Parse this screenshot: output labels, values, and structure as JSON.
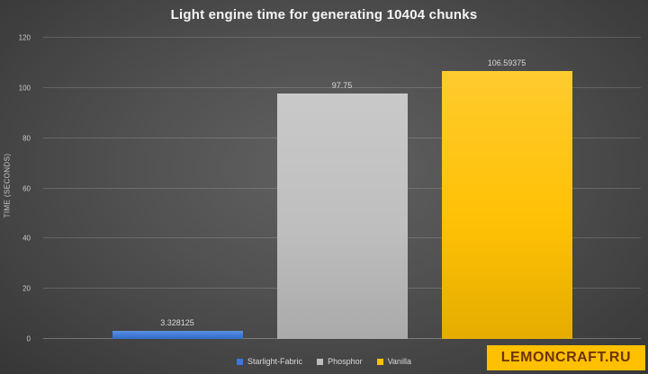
{
  "chart_data": {
    "type": "bar",
    "title": "Light engine time for generating 10404 chunks",
    "xlabel": "",
    "ylabel": "TIME (SECONDS)",
    "ylim": [
      0,
      120
    ],
    "yticks": [
      0,
      20,
      40,
      60,
      80,
      100,
      120
    ],
    "grid": true,
    "legend_position": "bottom",
    "categories": [
      "Starlight-Fabric",
      "Phosphor",
      "Vanilla"
    ],
    "values": [
      3.328125,
      97.75,
      106.59375
    ],
    "value_labels": [
      "3.328125",
      "97.75",
      "106.59375"
    ],
    "series_colors": [
      "#3b78d8",
      "#bdbdbd",
      "#ffc000"
    ]
  },
  "colors": {
    "background_center": "#616161",
    "background_edge": "#363636",
    "text": "#d9d9d9",
    "watermark_background": "#ffc000",
    "watermark_text": "#6b3405"
  },
  "watermark": {
    "text": "LEMONCRAFT.RU"
  }
}
